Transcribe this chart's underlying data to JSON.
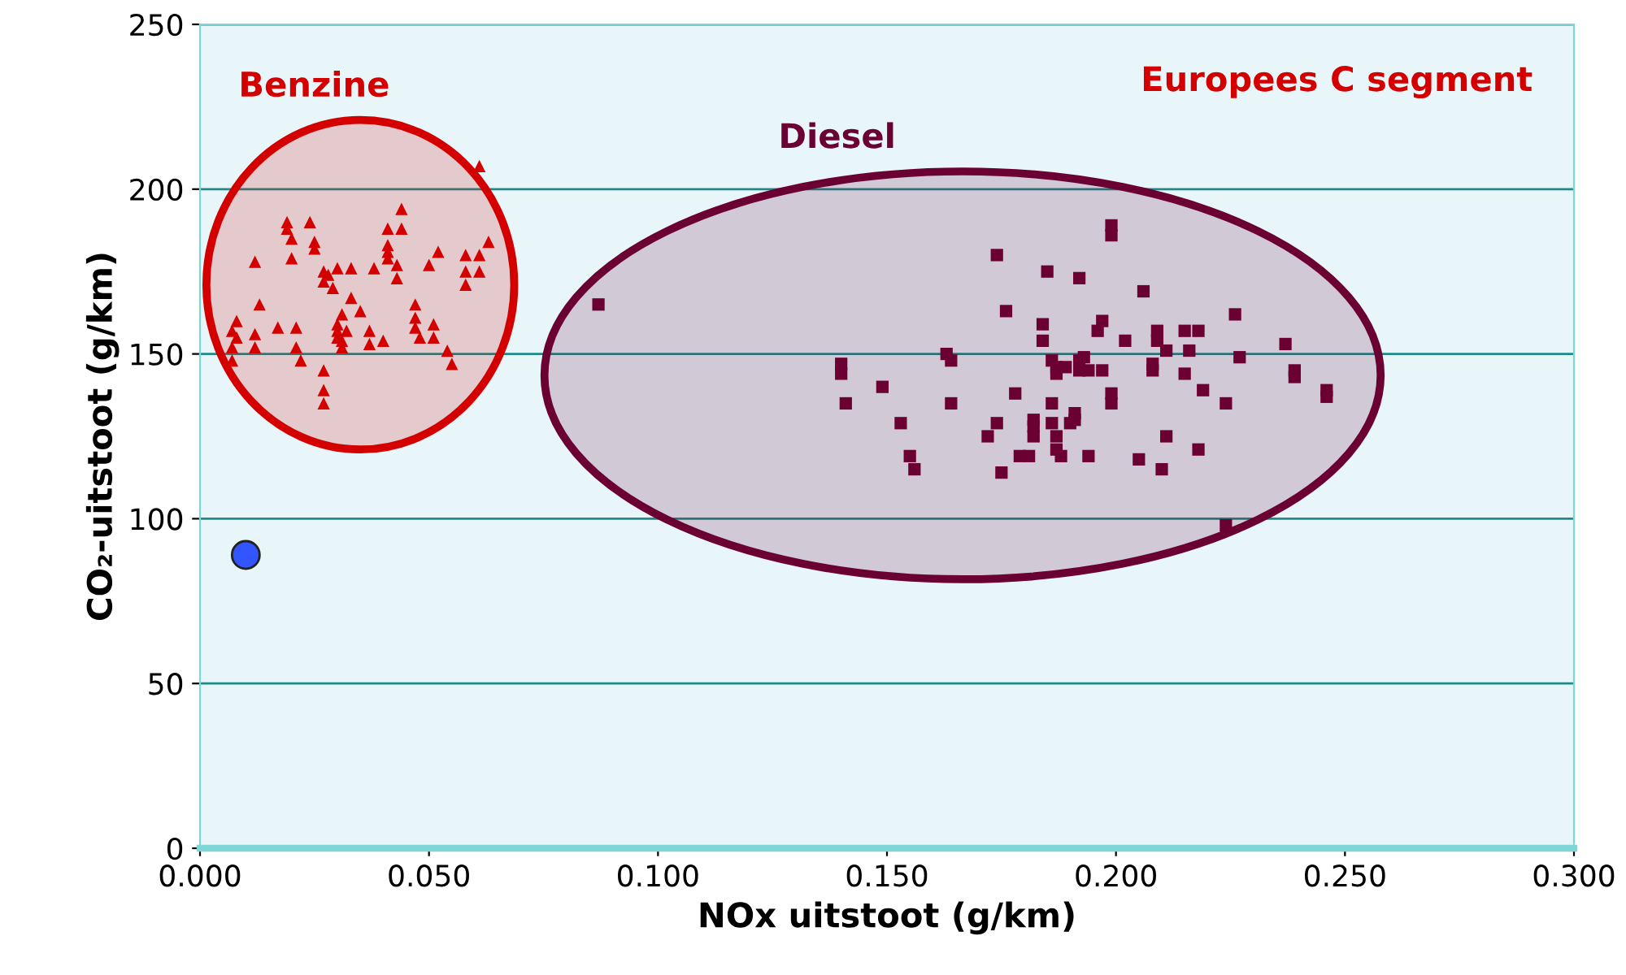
{
  "chart_data": {
    "type": "scatter",
    "xlabel": "NOx uitstoot (g/km)",
    "ylabel": "CO₂-uitstoot (g/km)",
    "xlim": [
      0,
      0.3
    ],
    "ylim": [
      0,
      250
    ],
    "xticks": [
      {
        "value": 0,
        "label": "0.000"
      },
      {
        "value": 0.05,
        "label": "0.050"
      },
      {
        "value": 0.1,
        "label": "0.100"
      },
      {
        "value": 0.15,
        "label": "0.150"
      },
      {
        "value": 0.2,
        "label": "0.200"
      },
      {
        "value": 0.25,
        "label": "0.250"
      },
      {
        "value": 0.3,
        "label": "0.300"
      }
    ],
    "yticks": [
      0,
      50,
      100,
      150,
      200,
      250
    ],
    "grid": "y",
    "annotations": [
      "Europees C segment"
    ],
    "series": [
      {
        "name": "Benzine",
        "color": "#d40000",
        "marker": "triangle",
        "x": [
          0.061,
          0.044,
          0.019,
          0.024,
          0.041,
          0.044,
          0.019,
          0.02,
          0.025,
          0.025,
          0.041,
          0.041,
          0.041,
          0.063,
          0.052,
          0.012,
          0.02,
          0.058,
          0.061,
          0.043,
          0.05,
          0.038,
          0.033,
          0.03,
          0.027,
          0.028,
          0.027,
          0.058,
          0.061,
          0.043,
          0.029,
          0.058,
          0.033,
          0.013,
          0.047,
          0.035,
          0.031,
          0.008,
          0.047,
          0.047,
          0.051,
          0.017,
          0.021,
          0.03,
          0.03,
          0.032,
          0.007,
          0.012,
          0.037,
          0.048,
          0.051,
          0.04,
          0.03,
          0.031,
          0.031,
          0.008,
          0.007,
          0.012,
          0.021,
          0.037,
          0.054,
          0.007,
          0.022,
          0.055,
          0.027,
          0.027,
          0.027
        ],
        "values": [
          207,
          194,
          190,
          190,
          188,
          188,
          188,
          185,
          184,
          182,
          183,
          181,
          179,
          184,
          181,
          178,
          179,
          180,
          180,
          177,
          177,
          176,
          176,
          176,
          175,
          174,
          172,
          175,
          175,
          173,
          170,
          171,
          167,
          165,
          165,
          163,
          162,
          160,
          161,
          158,
          159,
          158,
          158,
          159,
          157,
          157,
          157,
          156,
          157,
          155,
          155,
          154,
          155,
          154,
          152,
          155,
          152,
          152,
          152,
          153,
          151,
          148,
          148,
          147,
          145,
          139,
          135
        ]
      },
      {
        "name": "Diesel",
        "color": "#6b0033",
        "marker": "square",
        "x": [
          0.087,
          0.14,
          0.14,
          0.149,
          0.141,
          0.163,
          0.164,
          0.164,
          0.153,
          0.155,
          0.156,
          0.199,
          0.199,
          0.174,
          0.185,
          0.192,
          0.206,
          0.176,
          0.226,
          0.184,
          0.197,
          0.196,
          0.184,
          0.202,
          0.209,
          0.209,
          0.215,
          0.218,
          0.237,
          0.211,
          0.216,
          0.186,
          0.193,
          0.192,
          0.227,
          0.187,
          0.189,
          0.208,
          0.208,
          0.192,
          0.194,
          0.197,
          0.187,
          0.215,
          0.239,
          0.239,
          0.219,
          0.178,
          0.199,
          0.199,
          0.246,
          0.246,
          0.224,
          0.186,
          0.174,
          0.182,
          0.182,
          0.191,
          0.191,
          0.186,
          0.19,
          0.172,
          0.182,
          0.187,
          0.211,
          0.187,
          0.188,
          0.179,
          0.181,
          0.194,
          0.218,
          0.205,
          0.175,
          0.21,
          0.224
        ],
        "values": [
          165,
          147,
          144,
          140,
          135,
          150,
          148,
          135,
          129,
          119,
          115,
          189,
          186,
          180,
          175,
          173,
          169,
          163,
          162,
          159,
          160,
          157,
          154,
          154,
          157,
          154,
          157,
          157,
          153,
          151,
          151,
          148,
          149,
          148,
          149,
          146,
          146,
          147,
          145,
          145,
          145,
          145,
          144,
          144,
          145,
          143,
          139,
          138,
          138,
          135,
          139,
          137,
          135,
          135,
          129,
          130,
          128,
          132,
          130,
          129,
          129,
          125,
          125,
          125,
          125,
          121,
          119,
          119,
          119,
          119,
          121,
          118,
          114,
          115,
          98
        ]
      },
      {
        "color": "#3355ff",
        "marker": "circle",
        "x": [
          0.01
        ],
        "values": [
          89
        ]
      }
    ]
  }
}
